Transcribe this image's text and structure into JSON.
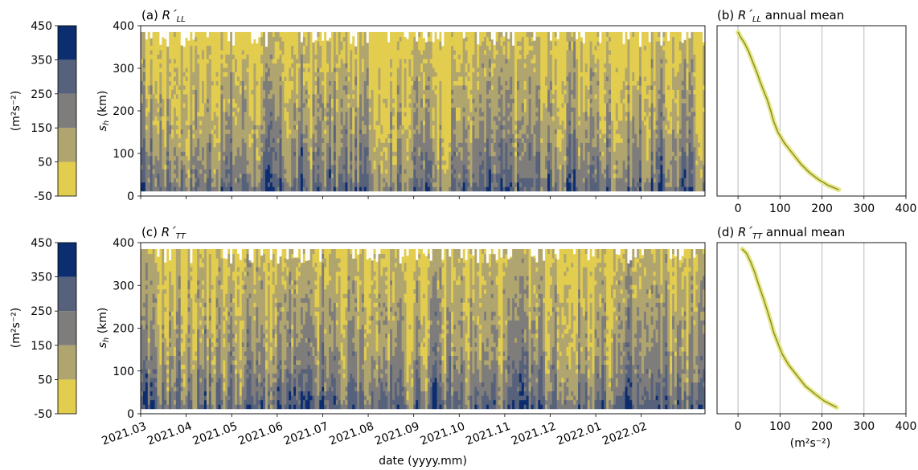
{
  "shared": {
    "x_ticks": [
      "2021.03",
      "2021.04",
      "2021.05",
      "2021.06",
      "2021.07",
      "2021.08",
      "2021.09",
      "2021.10",
      "2021.11",
      "2021.12",
      "2022.01",
      "2022.02"
    ],
    "xlabel": "date (yyyy.mm)",
    "y_ticks": [
      "0",
      "100",
      "200",
      "300",
      "400"
    ],
    "ylabel_main": "s",
    "ylabel_sub": "h",
    "ylabel_unit": " (km)",
    "profile_x_ticks": [
      "0",
      "100",
      "200",
      "300",
      "400"
    ],
    "profile_xlabel": "(m²s⁻²)"
  },
  "colorbar": {
    "unit_label": "(m²s⁻²)",
    "levels": [
      "-50",
      "50",
      "150",
      "250",
      "350",
      "450"
    ],
    "colors": [
      "#e2cd4e",
      "#b0a56e",
      "#7f7d7b",
      "#56617b",
      "#0c2d6f"
    ]
  },
  "chart_data": [
    {
      "panel": "a",
      "type": "heatmap",
      "title_prefix": "(a) ",
      "title_main": "R´",
      "title_sub": "LL",
      "title_suffix": "",
      "x_range": [
        "2021.03",
        "2022.03"
      ],
      "ylim": [
        0,
        400
      ],
      "z_levels": [
        -50,
        50,
        150,
        250,
        350,
        450
      ],
      "mean_field": [
        {
          "s_h": 15,
          "R": 240
        },
        {
          "s_h": 50,
          "R": 190
        },
        {
          "s_h": 100,
          "R": 155
        },
        {
          "s_h": 150,
          "R": 110
        },
        {
          "s_h": 200,
          "R": 85
        },
        {
          "s_h": 250,
          "R": 70
        },
        {
          "s_h": 300,
          "R": 45
        },
        {
          "s_h": 350,
          "R": 15
        },
        {
          "s_h": 385,
          "R": 0
        }
      ]
    },
    {
      "panel": "b",
      "type": "line",
      "title_prefix": "(b) ",
      "title_main": "R´",
      "title_sub": "LL",
      "title_suffix": " annual mean",
      "xlim": [
        -50,
        400
      ],
      "ylim": [
        0,
        400
      ],
      "series": [
        {
          "x": [
            240,
            215,
            190,
            170,
            150,
            130,
            110,
            95,
            85,
            78,
            70,
            60,
            52,
            45,
            35,
            25,
            15,
            5,
            0
          ],
          "y": [
            15,
            25,
            40,
            55,
            75,
            100,
            125,
            150,
            175,
            200,
            225,
            250,
            270,
            290,
            315,
            340,
            360,
            375,
            385
          ]
        }
      ]
    },
    {
      "panel": "c",
      "type": "heatmap",
      "title_prefix": "(c) ",
      "title_main": "R´",
      "title_sub": "TT",
      "title_suffix": "",
      "x_range": [
        "2021.03",
        "2022.03"
      ],
      "ylim": [
        0,
        400
      ],
      "z_levels": [
        -50,
        50,
        150,
        250,
        350,
        450
      ],
      "mean_field": [
        {
          "s_h": 15,
          "R": 240
        },
        {
          "s_h": 50,
          "R": 190
        },
        {
          "s_h": 100,
          "R": 140
        },
        {
          "s_h": 150,
          "R": 100
        },
        {
          "s_h": 200,
          "R": 85
        },
        {
          "s_h": 250,
          "R": 70
        },
        {
          "s_h": 300,
          "R": 50
        },
        {
          "s_h": 350,
          "R": 30
        },
        {
          "s_h": 385,
          "R": 10
        }
      ]
    },
    {
      "panel": "d",
      "type": "line",
      "title_prefix": "(d) ",
      "title_main": "R´",
      "title_sub": "TT",
      "title_suffix": " annual mean",
      "xlim": [
        -50,
        400
      ],
      "ylim": [
        0,
        400
      ],
      "series": [
        {
          "x": [
            235,
            225,
            205,
            185,
            160,
            140,
            120,
            105,
            95,
            85,
            78,
            70,
            62,
            55,
            48,
            40,
            30,
            20,
            10
          ],
          "y": [
            15,
            20,
            30,
            45,
            65,
            90,
            115,
            140,
            165,
            190,
            215,
            240,
            265,
            285,
            305,
            330,
            355,
            375,
            385
          ]
        }
      ]
    }
  ]
}
